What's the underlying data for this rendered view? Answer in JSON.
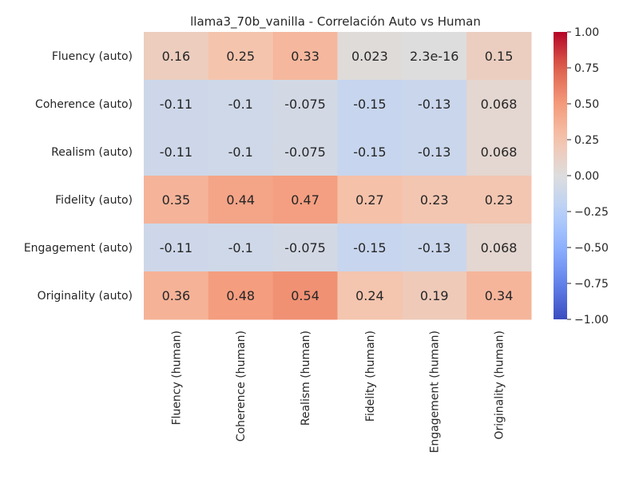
{
  "chart_data": {
    "type": "heatmap",
    "title": "llama3_70b_vanilla - Correlación Auto vs Human",
    "rows": [
      "Fluency (auto)",
      "Coherence (auto)",
      "Realism (auto)",
      "Fidelity (auto)",
      "Engagement (auto)",
      "Originality (auto)"
    ],
    "columns": [
      "Fluency (human)",
      "Coherence (human)",
      "Realism (human)",
      "Fidelity (human)",
      "Engagement (human)",
      "Originality (human)"
    ],
    "values": [
      [
        0.16,
        0.25,
        0.33,
        0.023,
        2.3e-16,
        0.15
      ],
      [
        -0.11,
        -0.1,
        -0.075,
        -0.15,
        -0.13,
        0.068
      ],
      [
        -0.11,
        -0.1,
        -0.075,
        -0.15,
        -0.13,
        0.068
      ],
      [
        0.35,
        0.44,
        0.47,
        0.27,
        0.23,
        0.23
      ],
      [
        -0.11,
        -0.1,
        -0.075,
        -0.15,
        -0.13,
        0.068
      ],
      [
        0.36,
        0.48,
        0.54,
        0.24,
        0.19,
        0.34
      ]
    ],
    "value_labels": [
      [
        "0.16",
        "0.25",
        "0.33",
        "0.023",
        "2.3e-16",
        "0.15"
      ],
      [
        "-0.11",
        "-0.1",
        "-0.075",
        "-0.15",
        "-0.13",
        "0.068"
      ],
      [
        "-0.11",
        "-0.1",
        "-0.075",
        "-0.15",
        "-0.13",
        "0.068"
      ],
      [
        "0.35",
        "0.44",
        "0.47",
        "0.27",
        "0.23",
        "0.23"
      ],
      [
        "-0.11",
        "-0.1",
        "-0.075",
        "-0.15",
        "-0.13",
        "0.068"
      ],
      [
        "0.36",
        "0.48",
        "0.54",
        "0.24",
        "0.19",
        "0.34"
      ]
    ],
    "colormap": "coolwarm",
    "vmin": -1,
    "vmax": 1,
    "colorbar_ticks": [
      1.0,
      0.75,
      0.5,
      0.25,
      0.0,
      -0.25,
      -0.5,
      -0.75,
      -1.0
    ],
    "colorbar_tick_labels": [
      "1.00",
      "0.75",
      "0.50",
      "0.25",
      "0.00",
      "−0.25",
      "−0.50",
      "−0.75",
      "−1.00"
    ]
  }
}
